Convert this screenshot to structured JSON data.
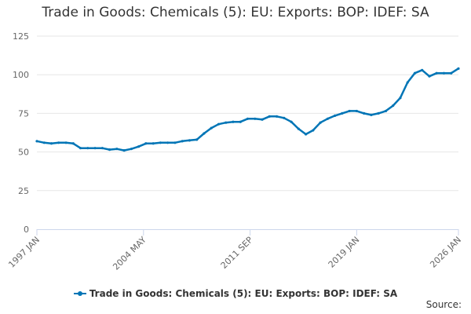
{
  "chart_data": {
    "type": "line",
    "title": "Trade in Goods: Chemicals (5): EU: Exports: BOP: IDEF: SA",
    "xlabel": "",
    "ylabel": "",
    "ylim": [
      0,
      125
    ],
    "yticks": [
      0,
      25,
      50,
      75,
      100,
      125
    ],
    "xlim": [
      "1997-01",
      "2026-01"
    ],
    "xtick_labels": [
      {
        "date": "1997-01",
        "label": "1997 JAN"
      },
      {
        "date": "2004-05",
        "label": "2004 MAY"
      },
      {
        "date": "2011-09",
        "label": "2011 SEP"
      },
      {
        "date": "2019-01",
        "label": "2019 JAN"
      },
      {
        "date": "2026-01",
        "label": "2026 JAN"
      }
    ],
    "grid": true,
    "legend_position": "bottom-center",
    "source_label": "Source:",
    "colors": {
      "series": "#0075b6",
      "grid": "#e6e6e6",
      "axis": "#ccd6eb"
    },
    "series": [
      {
        "name": "Trade in Goods: Chemicals (5): EU: Exports: BOP: IDEF: SA",
        "points": [
          [
            "1997-01",
            57
          ],
          [
            "1997-07",
            56
          ],
          [
            "1998-01",
            55.5
          ],
          [
            "1998-07",
            56
          ],
          [
            "1999-01",
            56
          ],
          [
            "1999-07",
            55.5
          ],
          [
            "2000-01",
            52.5
          ],
          [
            "2000-07",
            52.5
          ],
          [
            "2001-01",
            52.5
          ],
          [
            "2001-07",
            52.5
          ],
          [
            "2002-01",
            51.5
          ],
          [
            "2002-07",
            52
          ],
          [
            "2003-01",
            51
          ],
          [
            "2003-07",
            52
          ],
          [
            "2004-01",
            53.5
          ],
          [
            "2004-07",
            55.5
          ],
          [
            "2005-01",
            55.5
          ],
          [
            "2005-07",
            56
          ],
          [
            "2006-01",
            56
          ],
          [
            "2006-07",
            56
          ],
          [
            "2007-01",
            57
          ],
          [
            "2007-07",
            57.5
          ],
          [
            "2008-01",
            58
          ],
          [
            "2008-07",
            62
          ],
          [
            "2009-01",
            65.5
          ],
          [
            "2009-07",
            68
          ],
          [
            "2010-01",
            69
          ],
          [
            "2010-07",
            69.5
          ],
          [
            "2011-01",
            69.5
          ],
          [
            "2011-07",
            71.5
          ],
          [
            "2012-01",
            71.5
          ],
          [
            "2012-07",
            71
          ],
          [
            "2013-01",
            73
          ],
          [
            "2013-07",
            73
          ],
          [
            "2014-01",
            72
          ],
          [
            "2014-07",
            69.5
          ],
          [
            "2015-01",
            65
          ],
          [
            "2015-07",
            61.5
          ],
          [
            "2016-01",
            64
          ],
          [
            "2016-07",
            69
          ],
          [
            "2017-01",
            71.5
          ],
          [
            "2017-07",
            73.5
          ],
          [
            "2018-01",
            75
          ],
          [
            "2018-07",
            76.5
          ],
          [
            "2019-01",
            76.5
          ],
          [
            "2019-07",
            75
          ],
          [
            "2020-01",
            74
          ],
          [
            "2020-07",
            75
          ],
          [
            "2021-01",
            76.5
          ],
          [
            "2021-07",
            80
          ],
          [
            "2022-01",
            85
          ],
          [
            "2022-07",
            95
          ],
          [
            "2023-01",
            101
          ],
          [
            "2023-07",
            103
          ],
          [
            "2024-01",
            99
          ],
          [
            "2024-07",
            101
          ],
          [
            "2025-01",
            101
          ],
          [
            "2025-07",
            101
          ],
          [
            "2026-01",
            104
          ]
        ]
      }
    ]
  }
}
